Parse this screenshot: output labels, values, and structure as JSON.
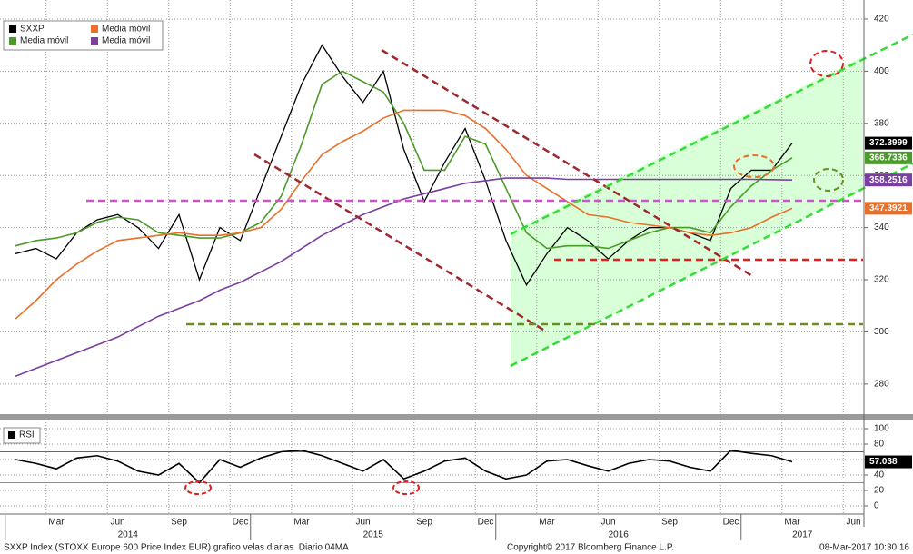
{
  "chart_data": {
    "type": "line",
    "categories": [
      null,
      null,
      "Mar",
      null,
      null,
      "Jun",
      null,
      null,
      "Sep",
      null,
      null,
      "Dec",
      null,
      null,
      "Mar",
      null,
      null,
      "Jun",
      null,
      null,
      "Sep",
      null,
      null,
      "Dec",
      null,
      null,
      "Mar",
      null,
      null,
      "Jun",
      null,
      null,
      "Sep",
      null,
      null,
      "Dec",
      null,
      null,
      "Mar",
      null,
      null,
      "Jun"
    ],
    "years": [
      "2014",
      "2015",
      "2016",
      "2017"
    ],
    "ylim": [
      268.8,
      427.3
    ],
    "yticks": [
      280,
      300,
      320,
      340,
      360,
      380,
      400,
      420
    ],
    "grid": true,
    "series": [
      {
        "name": "SXXP",
        "color": "#000000",
        "values": [
          330,
          332,
          328,
          338,
          343,
          345,
          340,
          332,
          345,
          320,
          340,
          335,
          355,
          375,
          395,
          410,
          398,
          388,
          400,
          370,
          350,
          365,
          378,
          358,
          335,
          318,
          330,
          340,
          335,
          328,
          335,
          340,
          340,
          338,
          335,
          355,
          362,
          362,
          372.3999,
          null,
          null,
          null
        ]
      },
      {
        "name": "Media móvil",
        "color": "#4b9b2a",
        "values": [
          333,
          335,
          336,
          338,
          342,
          344,
          343,
          338,
          337,
          336,
          336,
          338,
          342,
          352,
          372,
          395,
          400,
          396,
          392,
          380,
          362,
          362,
          375,
          372,
          355,
          338,
          332,
          333,
          333,
          332,
          335,
          338,
          340,
          340,
          338,
          348,
          356,
          362,
          366.7336,
          null,
          null,
          null
        ]
      },
      {
        "name": "Media móvil",
        "color": "#e8702a",
        "values": [
          305,
          312,
          320,
          326,
          331,
          335,
          336,
          337,
          338,
          337,
          337,
          338,
          340,
          347,
          358,
          368,
          373,
          377,
          382,
          385,
          385,
          385,
          383,
          378,
          370,
          360,
          355,
          350,
          345,
          344,
          342,
          341,
          340,
          338,
          337,
          338,
          340,
          344,
          347.3921,
          null,
          null,
          null
        ]
      },
      {
        "name": "Media móvil",
        "color": "#7a3fa0",
        "values": [
          283,
          286,
          289,
          292,
          295,
          298,
          302,
          306,
          309,
          312,
          316,
          319,
          323,
          327,
          332,
          337,
          341,
          345,
          348,
          351,
          353,
          355,
          357,
          358,
          359,
          359,
          359,
          358.5,
          358.5,
          358.5,
          358.5,
          358.5,
          358.5,
          358.5,
          358.5,
          358.5,
          358.5,
          358.4,
          358.2516,
          null,
          null,
          null
        ]
      }
    ],
    "rsi": {
      "type": "line",
      "ylim": [
        -9.4,
        110.6
      ],
      "yticks": [
        0,
        20,
        40,
        60,
        80,
        100
      ],
      "levels": [
        {
          "value": 70,
          "color": "#e03030"
        },
        {
          "value": 30,
          "color": "#33cc33"
        }
      ],
      "series": [
        {
          "name": "RSI",
          "color": "#000000",
          "values": [
            60,
            55,
            48,
            62,
            65,
            58,
            45,
            40,
            55,
            30,
            60,
            50,
            62,
            70,
            72,
            65,
            55,
            45,
            60,
            35,
            45,
            58,
            62,
            45,
            35,
            40,
            58,
            60,
            52,
            45,
            55,
            60,
            58,
            50,
            45,
            72,
            68,
            65,
            57.038,
            null,
            null,
            null
          ]
        }
      ]
    },
    "footer": {
      "left": "SXXP Index (STOXX Europe 600 Price Index EUR) grafico velas diarias  Diario 04MA",
      "center": "Copyright© 2017 Bloomberg Finance L.P.",
      "right": "08-Mar-2017 10:30:16"
    }
  }
}
